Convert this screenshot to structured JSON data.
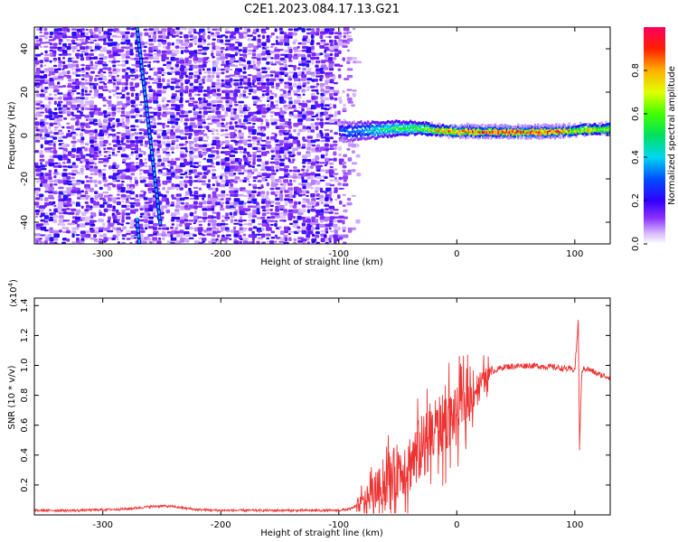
{
  "chart_data": [
    {
      "type": "heatmap",
      "title": "C2E1.2023.084.17.13.G21",
      "xlabel": "Height of straight line (km)",
      "ylabel": "Frequency (Hz)",
      "xlim": [
        -358,
        130
      ],
      "ylim": [
        -50,
        50
      ],
      "xticks": [
        -300,
        -200,
        -100,
        0,
        100
      ],
      "yticks": [
        -40,
        -20,
        0,
        20,
        40
      ],
      "noise_region_x": [
        -358,
        -85
      ],
      "signal_track": {
        "x": [
          -100,
          -90,
          -80,
          -70,
          -60,
          -50,
          -40,
          -30,
          -20,
          -10,
          0,
          20,
          40,
          60,
          80,
          90,
          100,
          110,
          120,
          130
        ],
        "frequency": [
          2.0,
          1.8,
          2.2,
          2.5,
          3.0,
          3.3,
          3.5,
          3.2,
          2.5,
          2.2,
          2.0,
          1.9,
          1.8,
          1.8,
          1.9,
          2.1,
          2.4,
          2.8,
          3.0,
          3.2
        ],
        "amplitude": [
          0.28,
          0.32,
          0.38,
          0.45,
          0.52,
          0.55,
          0.55,
          0.6,
          0.75,
          0.85,
          0.9,
          0.92,
          0.95,
          0.97,
          0.95,
          0.88,
          0.75,
          0.78,
          0.75,
          0.72
        ]
      },
      "interference_lines": [
        {
          "x_at_top": -271,
          "x_at_bottom": -251,
          "freq_top": 50,
          "freq_bottom": -42
        },
        {
          "x_at_top": -271,
          "x_at_bottom": -269,
          "freq_top": -38,
          "freq_bottom": -50
        }
      ],
      "colorbar": {
        "label": "Normalized spectral amplitude",
        "range": [
          0,
          1
        ],
        "ticks": [
          "0.0",
          "0.2",
          "0.4",
          "0.6",
          "0.8"
        ]
      }
    },
    {
      "type": "line",
      "xlabel": "Height of straight line (km)",
      "ylabel": "SNR (10 * v/v)",
      "multiplier_label": "(x10",
      "multiplier_exp": "4",
      "xlim": [
        -358,
        130
      ],
      "ylim": [
        0,
        1.45
      ],
      "xticks": [
        -300,
        -200,
        -100,
        0,
        100
      ],
      "yticks": [
        "0.2",
        "0.4",
        "0.6",
        "0.8",
        "1.0",
        "1.2",
        "1.4"
      ],
      "series": [
        {
          "name": "SNR",
          "color": "#ee3333",
          "x": [
            -358,
            -320,
            -280,
            -260,
            -250,
            -240,
            -220,
            -200,
            -160,
            -120,
            -100,
            -90,
            -80,
            -70,
            -60,
            -50,
            -40,
            -30,
            -20,
            -10,
            0,
            10,
            20,
            30,
            40,
            60,
            80,
            90,
            100,
            103,
            104,
            106,
            110,
            120,
            130
          ],
          "y": [
            0.03,
            0.03,
            0.04,
            0.055,
            0.06,
            0.055,
            0.035,
            0.03,
            0.03,
            0.03,
            0.03,
            0.04,
            0.08,
            0.15,
            0.22,
            0.3,
            0.35,
            0.45,
            0.55,
            0.62,
            0.68,
            0.78,
            0.88,
            0.96,
            0.99,
            1.0,
            0.99,
            0.98,
            0.97,
            1.3,
            0.45,
            0.97,
            0.98,
            0.94,
            0.92
          ]
        }
      ]
    }
  ]
}
